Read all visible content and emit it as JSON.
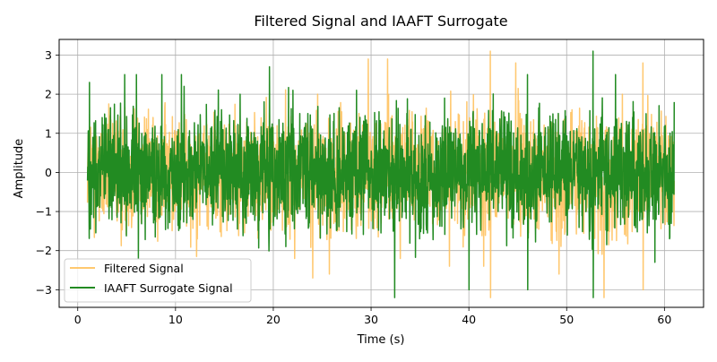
{
  "chart_data": {
    "type": "line",
    "title": "Filtered Signal and IAAFT Surrogate",
    "xlabel": "Time (s)",
    "ylabel": "Amplitude",
    "xlim": [
      -1.9,
      64.0
    ],
    "ylim": [
      -3.45,
      3.4
    ],
    "xticks": [
      0,
      10,
      20,
      30,
      40,
      50,
      60
    ],
    "yticks": [
      -3,
      -2,
      -1,
      0,
      1,
      2,
      3
    ],
    "grid": true,
    "legend_position": "lower-left",
    "series": [
      {
        "name": "Filtered Signal",
        "color": "#ffbe56",
        "opacity": 0.85,
        "x_range": [
          1.0,
          61.0
        ],
        "approx_std": 0.72,
        "approx_extremes": [
          {
            "x": 24.0,
            "y": -2.7
          },
          {
            "x": 25.7,
            "y": -2.6
          },
          {
            "x": 29.7,
            "y": 2.9
          },
          {
            "x": 31.7,
            "y": 2.9
          },
          {
            "x": 38.0,
            "y": -2.4
          },
          {
            "x": 41.5,
            "y": -2.4
          },
          {
            "x": 42.2,
            "y": 3.1
          },
          {
            "x": 42.2,
            "y": -3.2
          },
          {
            "x": 44.8,
            "y": 2.8
          },
          {
            "x": 49.2,
            "y": -2.6
          },
          {
            "x": 53.8,
            "y": -3.2
          },
          {
            "x": 55.7,
            "y": 2.0
          },
          {
            "x": 57.8,
            "y": 2.8
          },
          {
            "x": 57.8,
            "y": -3.0
          }
        ]
      },
      {
        "name": "IAAFT Surrogate Signal",
        "color": "#228b22",
        "opacity": 1.0,
        "x_range": [
          1.0,
          61.0
        ],
        "approx_std": 0.72,
        "approx_extremes": [
          {
            "x": 1.2,
            "y": 2.3
          },
          {
            "x": 4.8,
            "y": 2.5
          },
          {
            "x": 6.0,
            "y": 2.5
          },
          {
            "x": 8.6,
            "y": 2.5
          },
          {
            "x": 10.6,
            "y": 2.5
          },
          {
            "x": 16.6,
            "y": 2.0
          },
          {
            "x": 19.6,
            "y": 2.7
          },
          {
            "x": 22.0,
            "y": 2.1
          },
          {
            "x": 28.5,
            "y": 2.1
          },
          {
            "x": 32.4,
            "y": -3.2
          },
          {
            "x": 40.0,
            "y": -3.0
          },
          {
            "x": 46.0,
            "y": 2.5
          },
          {
            "x": 46.0,
            "y": -3.0
          },
          {
            "x": 52.7,
            "y": 3.1
          },
          {
            "x": 52.7,
            "y": -3.2
          },
          {
            "x": 55.0,
            "y": 2.5
          },
          {
            "x": 59.0,
            "y": -2.3
          },
          {
            "x": 61.0,
            "y": 1.8
          }
        ]
      }
    ]
  }
}
